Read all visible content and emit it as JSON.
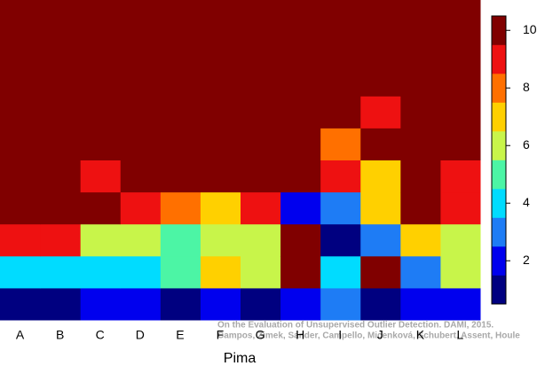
{
  "chart_data": {
    "type": "heatmap",
    "x_label": "Pima",
    "categories": [
      "A",
      "B",
      "C",
      "D",
      "E",
      "F",
      "G",
      "H",
      "I",
      "J",
      "K",
      "L"
    ],
    "values": [
      [
        10,
        10,
        10,
        10,
        10,
        10,
        10,
        10,
        10,
        10,
        10,
        10
      ],
      [
        10,
        10,
        10,
        10,
        10,
        10,
        10,
        10,
        10,
        10,
        10,
        10
      ],
      [
        10,
        10,
        10,
        10,
        10,
        10,
        10,
        10,
        10,
        10,
        10,
        10
      ],
      [
        10,
        10,
        10,
        10,
        10,
        10,
        10,
        10,
        10,
        9,
        10,
        10
      ],
      [
        10,
        10,
        10,
        10,
        10,
        10,
        10,
        10,
        8,
        10,
        10,
        10
      ],
      [
        10,
        10,
        9,
        10,
        10,
        10,
        10,
        10,
        9,
        7,
        10,
        9
      ],
      [
        10,
        10,
        10,
        9,
        8,
        7,
        9,
        2,
        3,
        7,
        10,
        9
      ],
      [
        9,
        9,
        6,
        6,
        5,
        6,
        6,
        10,
        1,
        3,
        7,
        6
      ],
      [
        4,
        4,
        4,
        4,
        5,
        7,
        6,
        10,
        4,
        10,
        3,
        6
      ],
      [
        1,
        1,
        2,
        2,
        1,
        2,
        1,
        2,
        3,
        1,
        2,
        2
      ]
    ],
    "colors": [
      "#000080",
      "#0000ee",
      "#1e7cf5",
      "#00dcff",
      "#4cf5a5",
      "#c8f54a",
      "#ffd000",
      "#ff7000",
      "#ee1111",
      "#800000"
    ],
    "clim": [
      0.5,
      10.5
    ],
    "cticks": [
      2,
      4,
      6,
      8,
      10
    ],
    "watermark": [
      "On the Evaluation of Unsupervised Outlier Detection. DAMI, 2015.",
      "Campos, Zimek, Sander, Campello, Micenková, Schubert, Assent, Houle"
    ]
  }
}
